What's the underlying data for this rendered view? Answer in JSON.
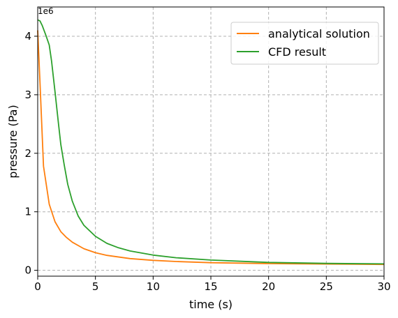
{
  "chart_data": {
    "type": "line",
    "xlabel": "time (s)",
    "ylabel": "pressure (Pa)",
    "y_offset_label": "1e6",
    "xlim": [
      0,
      30
    ],
    "ylim": [
      -100000,
      4500000
    ],
    "xticks": [
      0,
      5,
      10,
      15,
      20,
      25,
      30
    ],
    "xtick_labels": [
      "0",
      "5",
      "10",
      "15",
      "20",
      "25",
      "30"
    ],
    "yticks": [
      0,
      1000000,
      2000000,
      3000000,
      4000000
    ],
    "ytick_labels": [
      "0",
      "1",
      "2",
      "3",
      "4"
    ],
    "grid": true,
    "legend_position": "top-right",
    "series": [
      {
        "name": "analytical solution",
        "color": "#ff7f0e",
        "x": [
          0,
          0.2,
          0.5,
          1,
          1.5,
          2,
          2.5,
          3,
          4,
          5,
          6,
          8,
          10,
          12,
          15,
          20,
          25,
          30
        ],
        "y": [
          4100000,
          3200000,
          1780000,
          1130000,
          830000,
          660000,
          560000,
          480000,
          370000,
          300000,
          255000,
          200000,
          170000,
          150000,
          130000,
          115000,
          107000,
          100000
        ]
      },
      {
        "name": "CFD result",
        "color": "#2ca02c",
        "x": [
          0,
          0.2,
          0.4,
          0.7,
          1,
          1.2,
          1.5,
          1.8,
          2,
          2.3,
          2.6,
          3,
          3.5,
          4,
          5,
          6,
          7,
          8,
          10,
          12,
          15,
          20,
          25,
          30
        ],
        "y": [
          4280000,
          4260000,
          4180000,
          4020000,
          3850000,
          3580000,
          3050000,
          2500000,
          2150000,
          1800000,
          1470000,
          1180000,
          930000,
          770000,
          580000,
          460000,
          385000,
          330000,
          260000,
          215000,
          175000,
          135000,
          118000,
          110000
        ]
      }
    ]
  }
}
